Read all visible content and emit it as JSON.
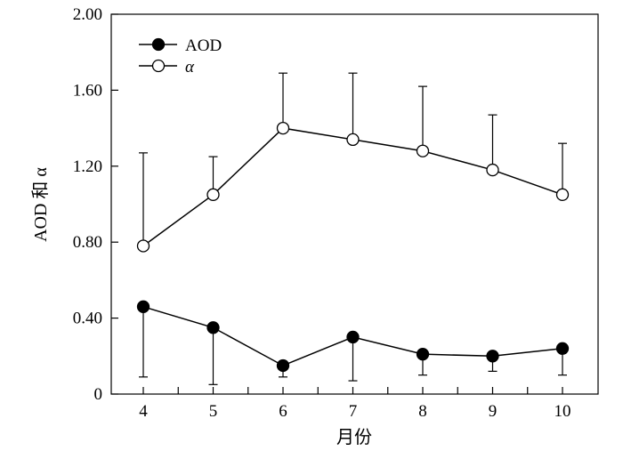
{
  "chart_data": {
    "type": "line",
    "categories": [
      "4",
      "5",
      "6",
      "7",
      "8",
      "9",
      "10"
    ],
    "xlabel": "月份",
    "ylabel": "AOD 和 α",
    "ylim": [
      0,
      2.0
    ],
    "yticks": [
      0,
      0.4,
      0.8,
      1.2,
      1.6,
      2.0
    ],
    "ytick_labels": [
      "0",
      "0.40",
      "0.80",
      "1.20",
      "1.60",
      "2.00"
    ],
    "grid": false,
    "legend_position": "top-left",
    "series": [
      {
        "name": "AOD",
        "marker": "filled-circle",
        "values": [
          0.46,
          0.35,
          0.15,
          0.3,
          0.21,
          0.2,
          0.24
        ],
        "error_lower": [
          0.09,
          0.05,
          0.09,
          0.07,
          0.1,
          0.12,
          0.1
        ],
        "error_upper": [
          0.46,
          0.35,
          0.15,
          0.3,
          0.21,
          0.2,
          0.24
        ]
      },
      {
        "name": "α",
        "marker": "open-circle",
        "values": [
          0.78,
          1.05,
          1.4,
          1.34,
          1.28,
          1.18,
          1.05
        ],
        "error_lower": [
          0.78,
          1.05,
          1.4,
          1.34,
          1.28,
          1.18,
          1.05
        ],
        "error_upper": [
          1.27,
          1.25,
          1.69,
          1.69,
          1.62,
          1.47,
          1.32
        ]
      }
    ]
  }
}
